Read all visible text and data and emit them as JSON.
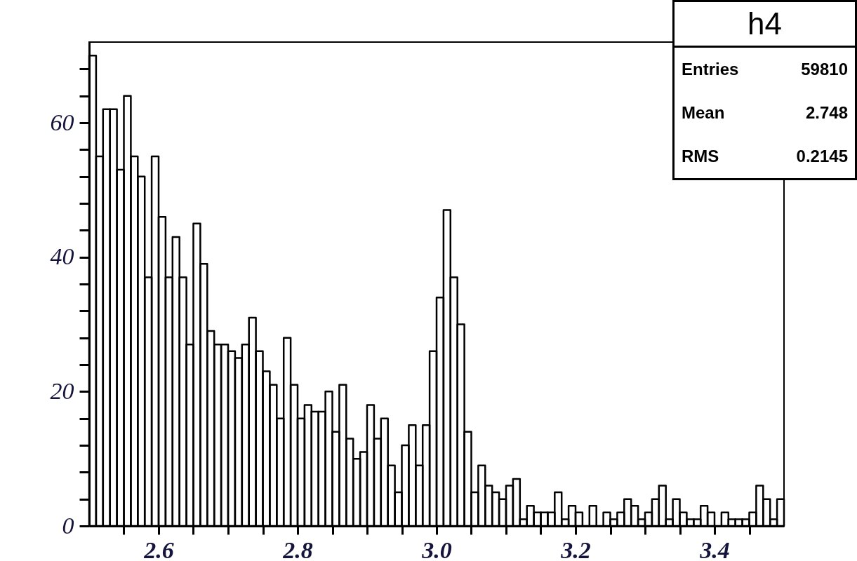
{
  "chart_data": {
    "type": "histogram",
    "bins": [
      2.5,
      2.51,
      2.52,
      2.53,
      2.54,
      2.55,
      2.56,
      2.57,
      2.58,
      2.59,
      2.6,
      2.61,
      2.62,
      2.63,
      2.64,
      2.65,
      2.66,
      2.67,
      2.68,
      2.69,
      2.7,
      2.71,
      2.72,
      2.73,
      2.74,
      2.75,
      2.76,
      2.77,
      2.78,
      2.79,
      2.8,
      2.81,
      2.82,
      2.83,
      2.84,
      2.85,
      2.86,
      2.87,
      2.88,
      2.89,
      2.9,
      2.91,
      2.92,
      2.93,
      2.94,
      2.95,
      2.96,
      2.97,
      2.98,
      2.99,
      3.0,
      3.01,
      3.02,
      3.03,
      3.04,
      3.05,
      3.06,
      3.07,
      3.08,
      3.09,
      3.1,
      3.11,
      3.12,
      3.13,
      3.14,
      3.15,
      3.16,
      3.17,
      3.18,
      3.19,
      3.2,
      3.21,
      3.22,
      3.23,
      3.24,
      3.25,
      3.26,
      3.27,
      3.28,
      3.29,
      3.3,
      3.31,
      3.32,
      3.33,
      3.34,
      3.35,
      3.36,
      3.37,
      3.38,
      3.39,
      3.4,
      3.41,
      3.42,
      3.43,
      3.44,
      3.45,
      3.46,
      3.47,
      3.48,
      3.49,
      3.5
    ],
    "values": [
      70,
      55,
      62,
      62,
      53,
      64,
      55,
      52,
      37,
      55,
      46,
      37,
      43,
      37,
      27,
      45,
      39,
      29,
      27,
      27,
      26,
      25,
      27,
      31,
      26,
      23,
      21,
      16,
      28,
      21,
      16,
      18,
      17,
      17,
      20,
      14,
      21,
      13,
      10,
      11,
      18,
      13,
      16,
      9,
      5,
      12,
      15,
      9,
      15,
      26,
      34,
      47,
      37,
      30,
      14,
      5,
      9,
      6,
      5,
      4,
      6,
      7,
      1,
      3,
      2,
      2,
      2,
      5,
      1,
      3,
      2,
      0,
      3,
      0,
      2,
      1,
      2,
      4,
      3,
      1,
      2,
      4,
      6,
      1,
      4,
      2,
      1,
      1,
      3,
      2,
      0,
      2,
      1,
      1,
      1,
      2,
      6,
      4,
      1,
      4
    ],
    "color": "#000000",
    "xlim": [
      2.5,
      3.5
    ],
    "xticks": [
      {
        "value": 2.55,
        "label": null
      },
      2.6,
      {
        "value": 2.65,
        "label": null
      },
      {
        "value": 2.7,
        "label": null
      },
      {
        "value": 2.75,
        "label": null
      },
      2.8,
      {
        "value": 2.85,
        "label": null
      },
      {
        "value": 2.9,
        "label": null
      },
      {
        "value": 2.95,
        "label": null
      },
      {
        "value": 3.0,
        "label": "3.0"
      },
      {
        "value": 3.05,
        "label": null
      },
      {
        "value": 3.1,
        "label": null
      },
      {
        "value": 3.15,
        "label": null
      },
      3.2,
      {
        "value": 3.25,
        "label": null
      },
      {
        "value": 3.3,
        "label": null
      },
      {
        "value": 3.35,
        "label": null
      },
      3.4,
      {
        "value": 3.45,
        "label": null
      }
    ],
    "ylim": [
      0,
      72
    ],
    "yticks": [
      0,
      {
        "value": 4,
        "label": null
      },
      {
        "value": 8,
        "label": null
      },
      {
        "value": 12,
        "label": null
      },
      {
        "value": 16,
        "label": null
      },
      20,
      {
        "value": 24,
        "label": null
      },
      {
        "value": 28,
        "label": null
      },
      {
        "value": 32,
        "label": null
      },
      {
        "value": 36,
        "label": null
      },
      40,
      {
        "value": 44,
        "label": null
      },
      {
        "value": 48,
        "label": null
      },
      {
        "value": 52,
        "label": null
      },
      {
        "value": 56,
        "label": null
      },
      60,
      {
        "value": 64,
        "label": null
      },
      {
        "value": 68,
        "label": null
      }
    ],
    "grid": false,
    "annotations": [
      "h4",
      "Entries",
      "59810",
      "Mean",
      "2.748",
      "RMS",
      "0.2145"
    ]
  }
}
